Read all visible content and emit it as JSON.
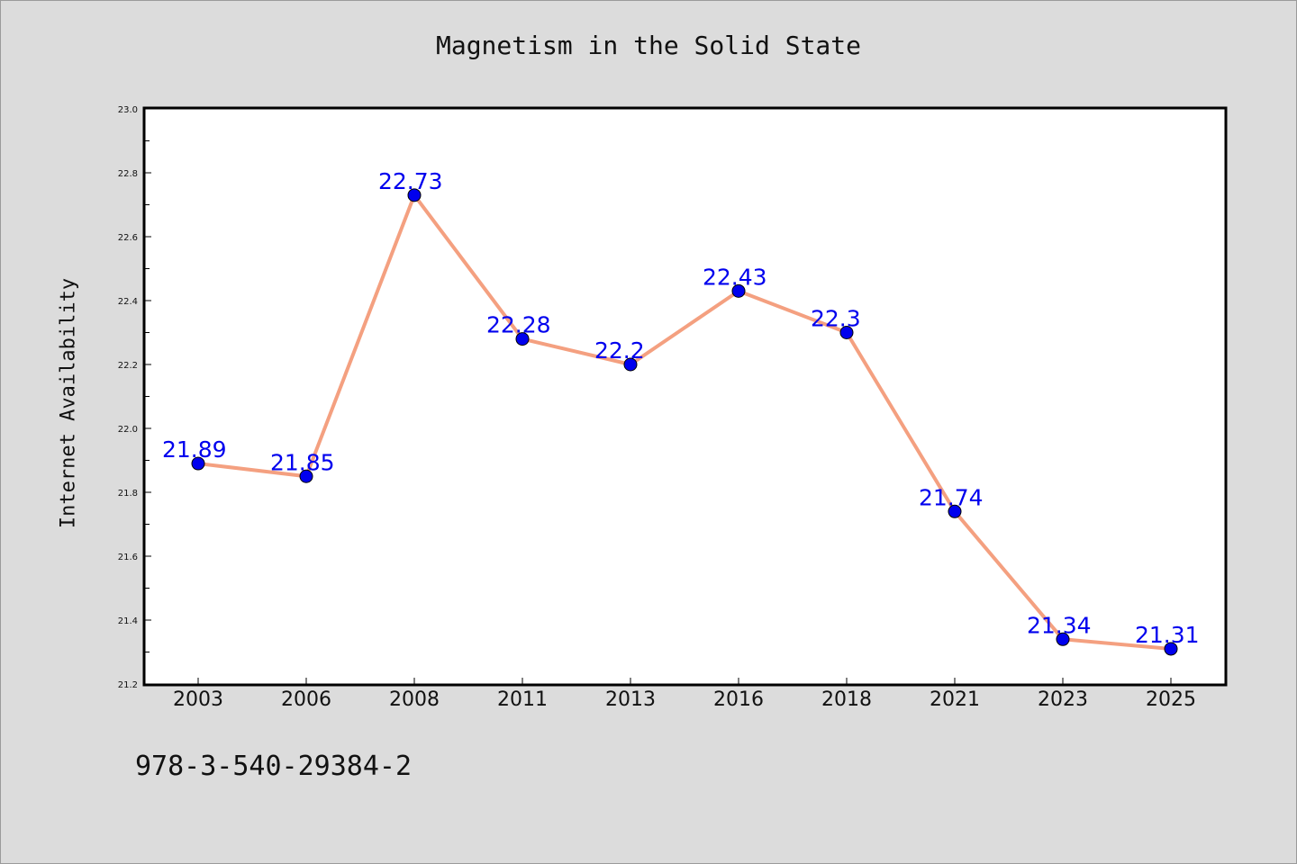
{
  "footer_text": "978-3-540-29384-2",
  "chart_data": {
    "type": "line",
    "title": "Magnetism in the Solid State",
    "xlabel": "",
    "ylabel": "Internet Availability",
    "categories": [
      "2003",
      "2006",
      "2008",
      "2011",
      "2013",
      "2016",
      "2018",
      "2021",
      "2023",
      "2025"
    ],
    "values": [
      21.89,
      21.85,
      22.73,
      22.28,
      22.2,
      22.43,
      22.3,
      21.74,
      21.34,
      21.31
    ],
    "data_labels": [
      "21.89",
      "21.85",
      "22.73",
      "22.28",
      "22.2",
      "22.43",
      "22.3",
      "21.74",
      "21.34",
      "21.31"
    ],
    "ylim": [
      21.2,
      23.0
    ],
    "yticks": [
      "21.2",
      "21.4",
      "21.6",
      "21.8",
      "22.0",
      "22.2",
      "22.4",
      "22.6",
      "22.8",
      "23.0"
    ],
    "grid": false,
    "legend": "none",
    "line_color": "#f4a080",
    "marker_color": "#0000ee",
    "label_color": "#0000ee"
  }
}
